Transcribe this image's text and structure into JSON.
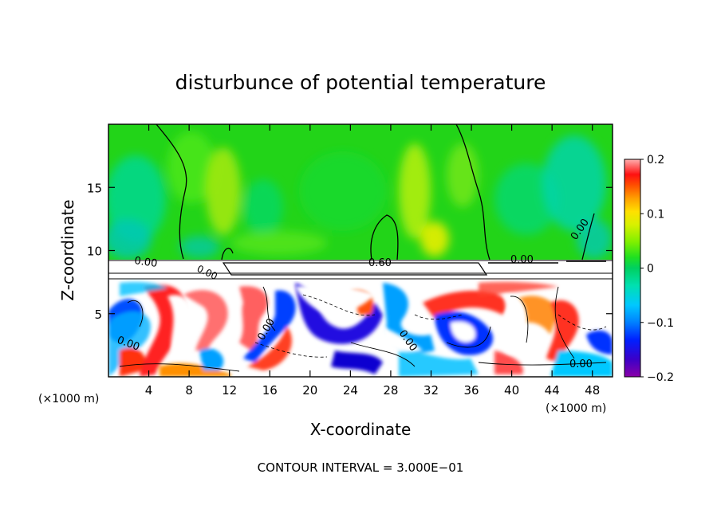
{
  "chart_data": {
    "type": "heatmap",
    "title": "disturbunce of potential temperature",
    "xlabel": "X-coordinate",
    "ylabel": "Z-coordinate",
    "x_unit_left": "(×1000 m)",
    "x_unit_right": "(×1000 m)",
    "xlim": [
      0,
      50
    ],
    "ylim": [
      0,
      20
    ],
    "x_ticks": [
      4,
      8,
      12,
      16,
      20,
      24,
      28,
      32,
      36,
      40,
      44,
      48
    ],
    "y_ticks": [
      5,
      10,
      15
    ],
    "colorbar": {
      "min": -0.2,
      "max": 0.2,
      "tick_values": [
        0.2,
        0.1,
        0,
        -0.1,
        -0.2
      ],
      "tick_labels": [
        "0.2",
        "0.1",
        "0",
        "−0.1",
        "−0.2"
      ],
      "colors": [
        "#8a00a8",
        "#3c00c8",
        "#0020ff",
        "#0080ff",
        "#00c8ff",
        "#00e0b0",
        "#00d060",
        "#20e020",
        "#80f000",
        "#d8f000",
        "#ffe000",
        "#ffa000",
        "#ff5000",
        "#ff1010",
        "#ff6a6a",
        "#ffb0b0"
      ]
    },
    "contour_labels": [
      "0.00",
      "0.00",
      "0.60",
      "0.00",
      "0.00",
      "0.00",
      "0.00",
      "0.00",
      "0.00"
    ],
    "contour_interval_text": "CONTOUR INTERVAL = 3.000E−01",
    "cloud_layer_z": [
      7.8,
      9.2
    ]
  }
}
